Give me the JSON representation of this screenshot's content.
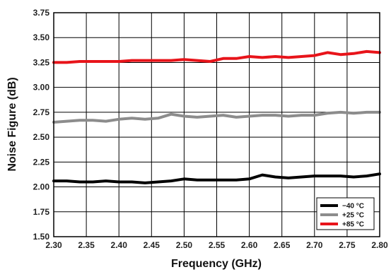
{
  "chart_data": {
    "type": "line",
    "xlabel": "Frequency (GHz)",
    "ylabel": "Noise Figure (dB)",
    "xlim": [
      2.3,
      2.8
    ],
    "ylim": [
      1.5,
      3.75
    ],
    "xticks": [
      "2.30",
      "2.35",
      "2.40",
      "2.45",
      "2.50",
      "2.55",
      "2.60",
      "2.65",
      "2.70",
      "2.75",
      "2.80"
    ],
    "yticks": [
      "1.50",
      "1.75",
      "2.00",
      "2.25",
      "2.50",
      "2.75",
      "3.00",
      "3.25",
      "3.50",
      "3.75"
    ],
    "grid": true,
    "legend_position": "bottom-right",
    "series": [
      {
        "name": "−40 °C",
        "color": "#000000",
        "x": [
          2.3,
          2.32,
          2.34,
          2.36,
          2.38,
          2.4,
          2.42,
          2.44,
          2.46,
          2.48,
          2.5,
          2.52,
          2.54,
          2.56,
          2.58,
          2.6,
          2.62,
          2.64,
          2.66,
          2.68,
          2.7,
          2.72,
          2.74,
          2.76,
          2.78,
          2.8
        ],
        "y": [
          2.06,
          2.06,
          2.05,
          2.05,
          2.06,
          2.05,
          2.05,
          2.04,
          2.05,
          2.06,
          2.08,
          2.07,
          2.07,
          2.07,
          2.07,
          2.08,
          2.12,
          2.1,
          2.09,
          2.1,
          2.11,
          2.11,
          2.11,
          2.1,
          2.11,
          2.13
        ]
      },
      {
        "name": "+25 °C",
        "color": "#8c8c8c",
        "x": [
          2.3,
          2.32,
          2.34,
          2.36,
          2.38,
          2.4,
          2.42,
          2.44,
          2.46,
          2.48,
          2.5,
          2.52,
          2.54,
          2.56,
          2.58,
          2.6,
          2.62,
          2.64,
          2.66,
          2.68,
          2.7,
          2.72,
          2.74,
          2.76,
          2.78,
          2.8
        ],
        "y": [
          2.65,
          2.66,
          2.67,
          2.67,
          2.66,
          2.68,
          2.69,
          2.68,
          2.69,
          2.73,
          2.71,
          2.7,
          2.71,
          2.72,
          2.7,
          2.71,
          2.72,
          2.72,
          2.71,
          2.72,
          2.72,
          2.74,
          2.75,
          2.74,
          2.75,
          2.75
        ]
      },
      {
        "name": "+85 °C",
        "color": "#e8141a",
        "x": [
          2.3,
          2.32,
          2.34,
          2.36,
          2.38,
          2.4,
          2.42,
          2.44,
          2.46,
          2.48,
          2.5,
          2.52,
          2.54,
          2.56,
          2.58,
          2.6,
          2.62,
          2.64,
          2.66,
          2.68,
          2.7,
          2.72,
          2.74,
          2.76,
          2.78,
          2.8
        ],
        "y": [
          3.25,
          3.25,
          3.26,
          3.26,
          3.26,
          3.26,
          3.27,
          3.27,
          3.27,
          3.27,
          3.28,
          3.27,
          3.26,
          3.29,
          3.29,
          3.31,
          3.3,
          3.31,
          3.3,
          3.31,
          3.32,
          3.35,
          3.33,
          3.34,
          3.36,
          3.35
        ]
      }
    ]
  }
}
